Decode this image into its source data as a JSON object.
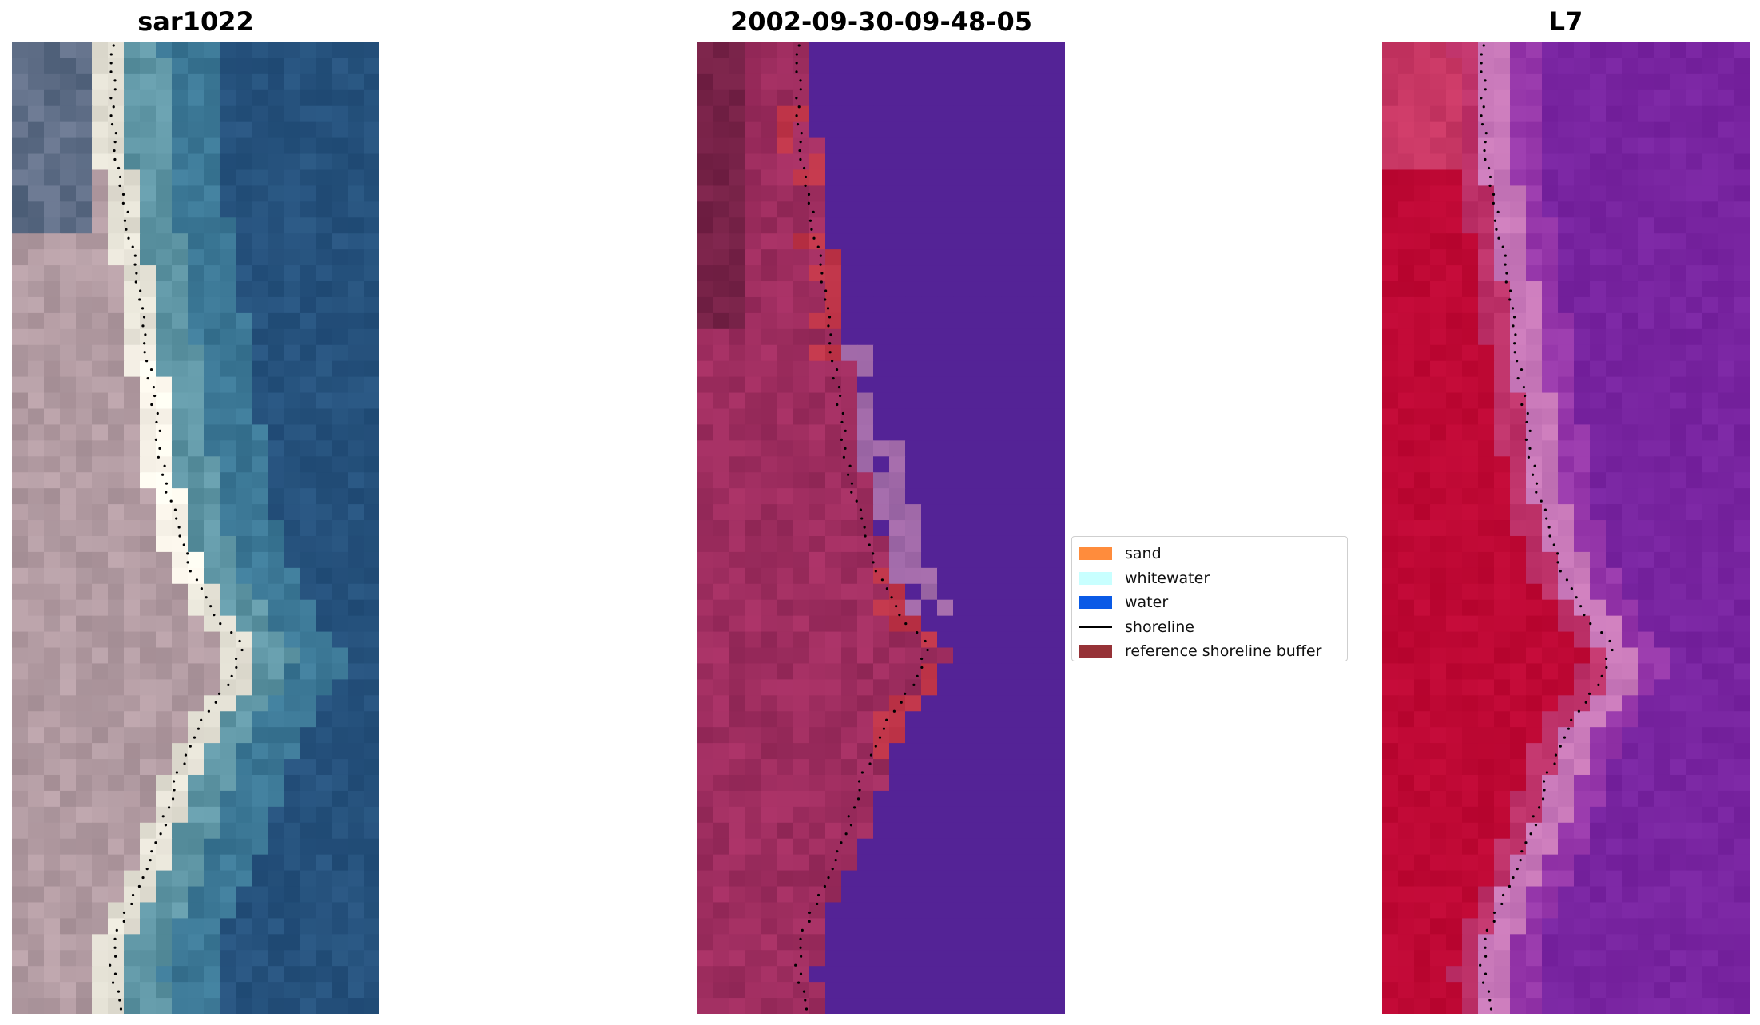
{
  "panels": [
    {
      "title": "sar1022",
      "icon": "rgb-satellite-image"
    },
    {
      "title": "2002-09-30-09-48-05",
      "icon": "classified-image"
    },
    {
      "title": "L7",
      "icon": "mndwi-image"
    }
  ],
  "legend": {
    "items": [
      {
        "label": "sand",
        "color": "#ff8c3c",
        "kind": "patch"
      },
      {
        "label": "whitewater",
        "color": "#c8ffff",
        "kind": "patch"
      },
      {
        "label": "water",
        "color": "#0a5ae6",
        "kind": "patch"
      },
      {
        "label": "shoreline",
        "color": "#000000",
        "kind": "line"
      },
      {
        "label": "reference shoreline buffer",
        "color": "#963237",
        "kind": "patch"
      }
    ]
  }
}
